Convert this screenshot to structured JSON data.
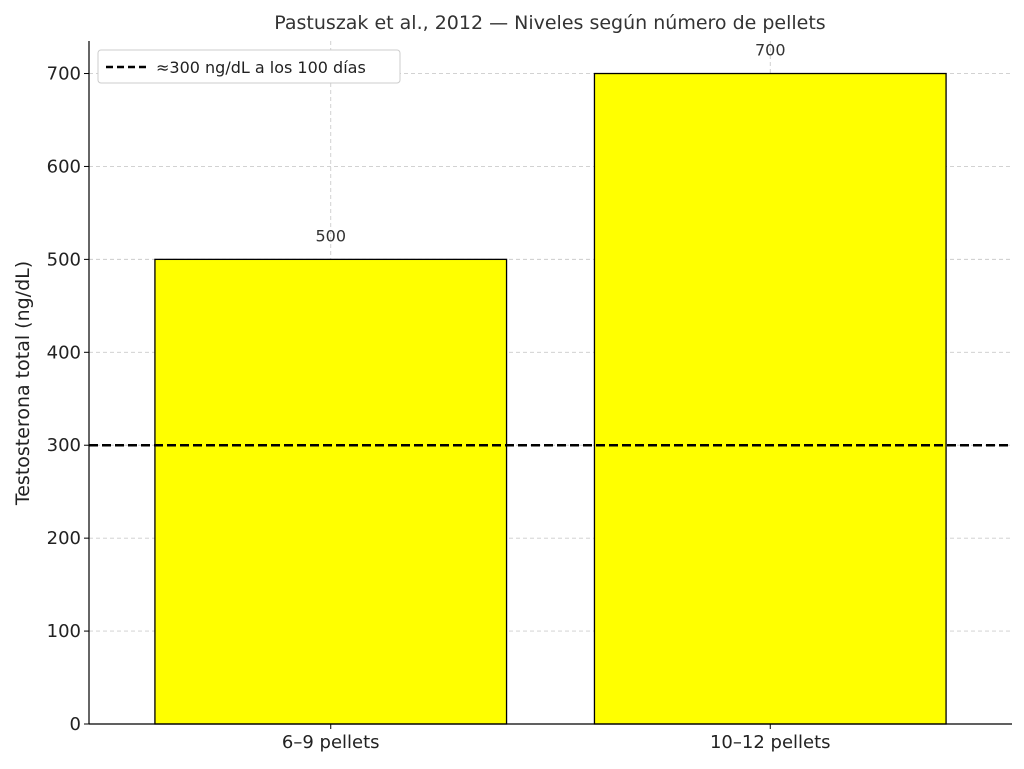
{
  "chart_data": {
    "type": "bar",
    "title": "Pastuszak et al., 2012 — Niveles según número de pellets",
    "xlabel": "",
    "ylabel": "Testosterona total (ng/dL)",
    "categories": [
      "6–9 pellets",
      "10–12 pellets"
    ],
    "values": [
      500,
      700
    ],
    "value_labels": [
      "500",
      "700"
    ],
    "ylim": [
      0,
      735
    ],
    "yticks": [
      0,
      100,
      200,
      300,
      400,
      500,
      600,
      700
    ],
    "grid": true,
    "reference_line": {
      "y": 300,
      "style": "dashed",
      "label": "≈300 ng/dL a los 100 días"
    },
    "legend": {
      "position": "top-left",
      "entries": [
        "≈300 ng/dL a los 100 días"
      ]
    },
    "colors": {
      "bar_fill": "#ffff00",
      "bar_edge": "#000000",
      "reference_line": "#000000",
      "grid": "#cccccc"
    }
  }
}
